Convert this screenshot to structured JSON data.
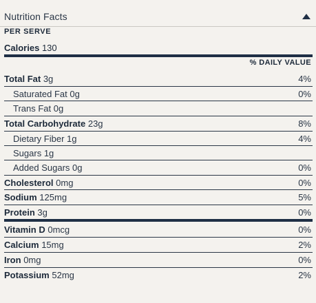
{
  "panel": {
    "title": "Nutrition Facts",
    "collapse_icon": "triangle-up-icon",
    "per_serve": "PER SERVE",
    "calories_label": "Calories",
    "calories_value": "130",
    "dv_header": "% DAILY VALUE"
  },
  "nutrients": [
    {
      "label": "Total Fat",
      "amount": "3g",
      "dv": "4%"
    },
    {
      "label": "Saturated Fat",
      "amount": "0g",
      "dv": "0%"
    },
    {
      "label": "Trans Fat",
      "amount": "0g",
      "dv": ""
    },
    {
      "label": "Total Carbohydrate",
      "amount": "23g",
      "dv": "8%"
    },
    {
      "label": "Dietary Fiber",
      "amount": "1g",
      "dv": "4%"
    },
    {
      "label": "Sugars",
      "amount": "1g",
      "dv": ""
    },
    {
      "label": "Added Sugars",
      "amount": "0g",
      "dv": "0%"
    },
    {
      "label": "Cholesterol",
      "amount": "0mg",
      "dv": "0%"
    },
    {
      "label": "Sodium",
      "amount": "125mg",
      "dv": "5%"
    },
    {
      "label": "Protein",
      "amount": "3g",
      "dv": "0%"
    }
  ],
  "vitamins": [
    {
      "label": "Vitamin D",
      "amount": "0mcg",
      "dv": "0%"
    },
    {
      "label": "Calcium",
      "amount": "15mg",
      "dv": "2%"
    },
    {
      "label": "Iron",
      "amount": "0mg",
      "dv": "0%"
    },
    {
      "label": "Potassium",
      "amount": "52mg",
      "dv": "2%"
    }
  ],
  "colors": {
    "background": "#f4f2ee",
    "rule": "#1f2f45",
    "text": "#1d2a3a"
  }
}
